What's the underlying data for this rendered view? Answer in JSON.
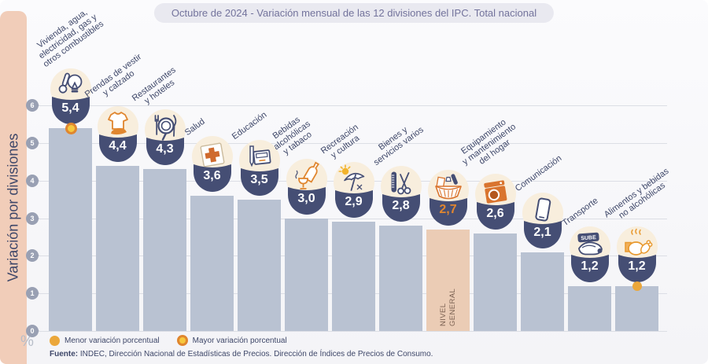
{
  "percent_symbol": "%",
  "source": {
    "prefix": "Fuente:",
    "text": " INDEC, Dirección Nacional de Estadísticas de Precios. Dirección de Índices de Precios de Consumo."
  },
  "colors": {
    "bar": "#b9c2d2",
    "highlight_bar": "#ebccb5",
    "bowl": "#454e74",
    "accent_orange": "#e0862f",
    "strip": "#f1cdb9",
    "navy_text": "#3e4769",
    "dot_yellow": "#f6c83e",
    "dot_solid": "#eba73b",
    "icon_circle": "#f8eedd",
    "gridline": "#dcdee5",
    "tick": "#99a0b3"
  },
  "chart_data": {
    "type": "bar",
    "title": "Octubre de 2024 - Variación mensual de las 12 divisiones del IPC. Total nacional",
    "ylabel": "Variación por divisiones",
    "xlabel": "",
    "unit": "%",
    "ylim": [
      0,
      6
    ],
    "yticks": [
      0,
      1,
      2,
      3,
      4,
      5,
      6
    ],
    "grid": true,
    "legend": {
      "menor": "Menor variación porcentual",
      "mayor": "Mayor variación porcentual"
    },
    "bars": [
      {
        "label": "Vivienda, agua,\nelectricidad, gas y\notros combustibles",
        "value": 5.4,
        "display": "5,4",
        "icon": "utilities-icon",
        "marker": "mayor"
      },
      {
        "label": "Prendas de vestir\ny calzado",
        "value": 4.4,
        "display": "4,4",
        "icon": "clothing-icon"
      },
      {
        "label": "Restaurantes\ny hoteles",
        "value": 4.3,
        "display": "4,3",
        "icon": "restaurant-icon"
      },
      {
        "label": "Salud",
        "value": 3.6,
        "display": "3,6",
        "icon": "health-cross-icon"
      },
      {
        "label": "Educación",
        "value": 3.5,
        "display": "3,5",
        "icon": "education-icon"
      },
      {
        "label": "Bebidas\nalcohólicas\ny tabaco",
        "value": 3.0,
        "display": "3,0",
        "icon": "alcohol-tobacco-icon"
      },
      {
        "label": "Recreación\ny cultura",
        "value": 2.9,
        "display": "2,9",
        "icon": "recreation-icon"
      },
      {
        "label": "Bienes y\nservicios varios",
        "value": 2.8,
        "display": "2,8",
        "icon": "goods-services-icon"
      },
      {
        "label": "",
        "bar_label": "NIVEL\nGENERAL",
        "value": 2.7,
        "display": "2,7",
        "icon": "basket-icon",
        "highlight": true
      },
      {
        "label": "Equipamiento\ny mantenimiento\ndel hogar",
        "value": 2.6,
        "display": "2,6",
        "icon": "home-equipment-icon"
      },
      {
        "label": "Comunicación",
        "value": 2.1,
        "display": "2,1",
        "icon": "smartphone-icon"
      },
      {
        "label": "Transporte",
        "value": 1.2,
        "display": "1,2",
        "icon": "sube-card-icon"
      },
      {
        "label": "Alimentos y bebidas\nno alcohólicas",
        "value": 1.2,
        "display": "1,2",
        "icon": "food-icon",
        "marker": "menor"
      }
    ]
  }
}
